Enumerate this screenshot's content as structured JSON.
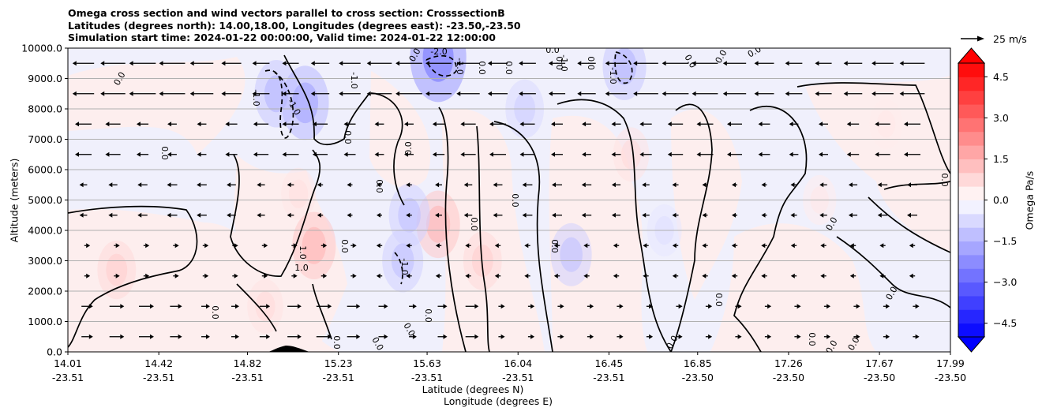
{
  "chart_data": {
    "type": "heatmap",
    "title_lines": [
      "Omega cross section and wind vectors parallel to cross section: CrosssectionB",
      "Latitudes (degrees north): 14.00,18.00, Longitudes (degrees east): -23.50,-23.50",
      "Simulation start time: 2024-01-22 00:00:00, Valid time: 2024-01-22 12:00:00"
    ],
    "xlabel_line1": "Latitude (degrees N)",
    "xlabel_line2": "Longitude (degrees E)",
    "ylabel": "Altitude (meters)",
    "x_ticks": [
      {
        "lat": "14.01",
        "lon": "-23.51",
        "value": 14.01
      },
      {
        "lat": "14.42",
        "lon": "-23.51",
        "value": 14.42
      },
      {
        "lat": "14.82",
        "lon": "-23.51",
        "value": 14.82
      },
      {
        "lat": "15.23",
        "lon": "-23.51",
        "value": 15.23
      },
      {
        "lat": "15.63",
        "lon": "-23.51",
        "value": 15.63
      },
      {
        "lat": "16.04",
        "lon": "-23.51",
        "value": 16.04
      },
      {
        "lat": "16.45",
        "lon": "-23.51",
        "value": 16.45
      },
      {
        "lat": "16.85",
        "lon": "-23.50",
        "value": 16.85
      },
      {
        "lat": "17.26",
        "lon": "-23.50",
        "value": 17.26
      },
      {
        "lat": "17.67",
        "lon": "-23.50",
        "value": 17.67
      },
      {
        "lat": "17.99",
        "lon": "-23.50",
        "value": 17.99
      }
    ],
    "xlim": [
      14.01,
      17.99
    ],
    "y_ticks": [
      "0.0",
      "1000.0",
      "2000.0",
      "3000.0",
      "4000.0",
      "5000.0",
      "6000.0",
      "7000.0",
      "8000.0",
      "9000.0",
      "10000.0"
    ],
    "ylim": [
      0,
      10000
    ],
    "grid": "horizontal",
    "colorbar": {
      "label": "Omega Pa/s",
      "ticks": [
        "4.5",
        "3.0",
        "1.5",
        "0.0",
        "−1.5",
        "−3.0",
        "−4.5"
      ],
      "range": [
        -5.0,
        5.0
      ],
      "extend": "both",
      "colormap": "bwr",
      "positive_color": "#ff0000",
      "negative_color": "#0000ff"
    },
    "quiver_key": {
      "label": "25 m/s",
      "speed": 25
    },
    "contour_labels": [
      "0.0",
      "1.0",
      "-1.0",
      "-2.0"
    ],
    "omega_anomalies": [
      {
        "lat": 14.23,
        "alt": 2700,
        "value": 0.8
      },
      {
        "lat": 15.05,
        "alt": 5200,
        "value": 0.5
      },
      {
        "lat": 15.12,
        "alt": 3500,
        "value": 1.2
      },
      {
        "lat": 14.9,
        "alt": 1500,
        "value": 0.6
      },
      {
        "lat": 15.68,
        "alt": 4200,
        "value": 1.2
      },
      {
        "lat": 15.88,
        "alt": 3000,
        "value": 0.8
      },
      {
        "lat": 16.55,
        "alt": 6500,
        "value": 0.6
      },
      {
        "lat": 17.4,
        "alt": 5000,
        "value": 0.4
      },
      {
        "lat": 17.7,
        "alt": 7500,
        "value": 0.4
      },
      {
        "lat": 14.95,
        "alt": 8500,
        "value": -1.2
      },
      {
        "lat": 15.08,
        "alt": 8200,
        "value": -1.5
      },
      {
        "lat": 15.55,
        "alt": 4500,
        "value": -1.0
      },
      {
        "lat": 15.52,
        "alt": 3000,
        "value": -1.0
      },
      {
        "lat": 15.68,
        "alt": 9700,
        "value": -2.2
      },
      {
        "lat": 16.07,
        "alt": 8000,
        "value": -0.8
      },
      {
        "lat": 16.28,
        "alt": 3200,
        "value": -1.0
      },
      {
        "lat": 16.52,
        "alt": 9400,
        "value": -1.2
      },
      {
        "lat": 16.7,
        "alt": 4000,
        "value": -0.5
      }
    ]
  }
}
